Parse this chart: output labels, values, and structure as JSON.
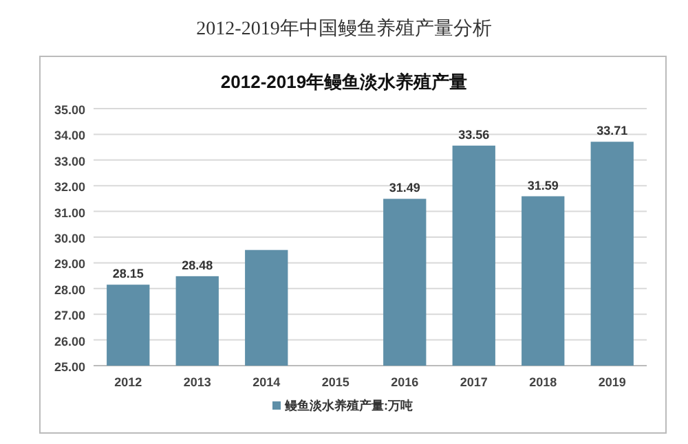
{
  "chart_data": {
    "type": "bar",
    "title": "2012-2019年中国鳗鱼养殖产量分析",
    "subtitle": "2012-2019年鳗鱼淡水养殖产量",
    "categories": [
      "2012",
      "2013",
      "2014",
      "2015",
      "2016",
      "2017",
      "2018",
      "2019"
    ],
    "series": [
      {
        "name": "鳗鱼淡水养殖产量:万吨",
        "color": "#5e8fa8",
        "values": [
          28.15,
          28.48,
          29.5,
          null,
          31.49,
          33.56,
          31.59,
          33.71
        ],
        "value_labels": [
          "28.15",
          "28.48",
          null,
          null,
          "31.49",
          "33.56",
          "31.59",
          "33.71"
        ]
      }
    ],
    "ylim": [
      25,
      35
    ],
    "yticks": [
      {
        "value": 25,
        "label": "25.00"
      },
      {
        "value": 26,
        "label": "26.00"
      },
      {
        "value": 27,
        "label": "27.00"
      },
      {
        "value": 28,
        "label": "28.00"
      },
      {
        "value": 29,
        "label": "29.00"
      },
      {
        "value": 30,
        "label": "30.00"
      },
      {
        "value": 31,
        "label": "31.00"
      },
      {
        "value": 32,
        "label": "32.00"
      },
      {
        "value": 33,
        "label": "33.00"
      },
      {
        "value": 34,
        "label": "34.00"
      },
      {
        "value": 35,
        "label": "35.00"
      }
    ],
    "grid": "y",
    "legend": "bottom"
  }
}
